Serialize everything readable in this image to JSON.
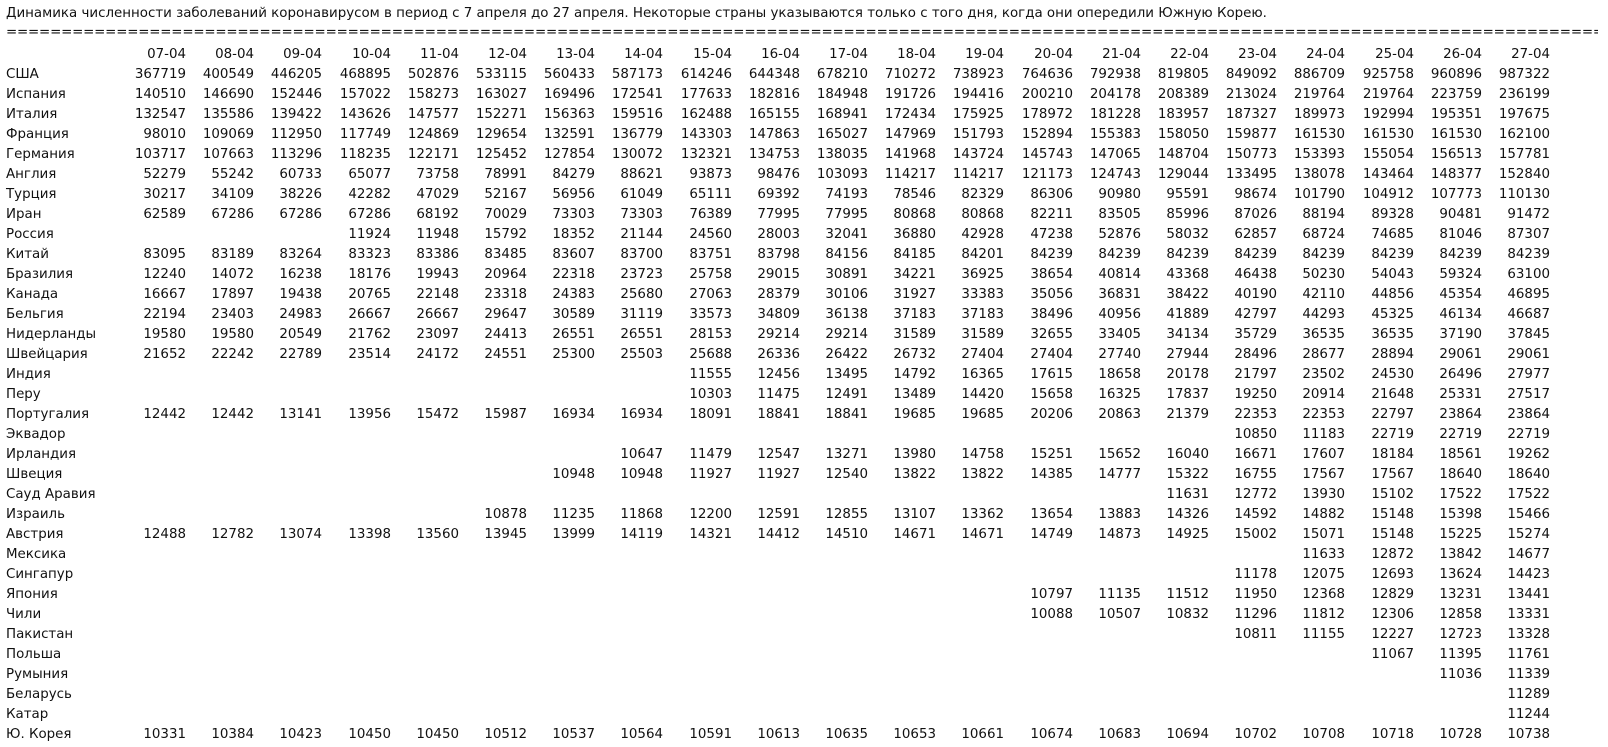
{
  "title": "Динамика численности заболеваний коронавирусом в период с 7 апреля до 27 апреля. Некоторые страны указываются только с того дня, когда они опередили Южную Корею.",
  "separator": "=====================================================================================================================================================================================================================================================",
  "dates": [
    "07-04",
    "08-04",
    "09-04",
    "10-04",
    "11-04",
    "12-04",
    "13-04",
    "14-04",
    "15-04",
    "16-04",
    "17-04",
    "18-04",
    "19-04",
    "20-04",
    "21-04",
    "22-04",
    "23-04",
    "24-04",
    "25-04",
    "26-04",
    "27-04"
  ],
  "rows": [
    {
      "country": "США",
      "values": [
        "367719",
        "400549",
        "446205",
        "468895",
        "502876",
        "533115",
        "560433",
        "587173",
        "614246",
        "644348",
        "678210",
        "710272",
        "738923",
        "764636",
        "792938",
        "819805",
        "849092",
        "886709",
        "925758",
        "960896",
        "987322"
      ]
    },
    {
      "country": "Испания",
      "values": [
        "140510",
        "146690",
        "152446",
        "157022",
        "158273",
        "163027",
        "169496",
        "172541",
        "177633",
        "182816",
        "184948",
        "191726",
        "194416",
        "200210",
        "204178",
        "208389",
        "213024",
        "219764",
        "219764",
        "223759",
        "236199"
      ]
    },
    {
      "country": "Италия",
      "values": [
        "132547",
        "135586",
        "139422",
        "143626",
        "147577",
        "152271",
        "156363",
        "159516",
        "162488",
        "165155",
        "168941",
        "172434",
        "175925",
        "178972",
        "181228",
        "183957",
        "187327",
        "189973",
        "192994",
        "195351",
        "197675"
      ]
    },
    {
      "country": "Франция",
      "values": [
        "98010",
        "109069",
        "112950",
        "117749",
        "124869",
        "129654",
        "132591",
        "136779",
        "143303",
        "147863",
        "165027",
        "147969",
        "151793",
        "152894",
        "155383",
        "158050",
        "159877",
        "161530",
        "161530",
        "161530",
        "162100"
      ]
    },
    {
      "country": "Германия",
      "values": [
        "103717",
        "107663",
        "113296",
        "118235",
        "122171",
        "125452",
        "127854",
        "130072",
        "132321",
        "134753",
        "138035",
        "141968",
        "143724",
        "145743",
        "147065",
        "148704",
        "150773",
        "153393",
        "155054",
        "156513",
        "157781"
      ]
    },
    {
      "country": "Англия",
      "values": [
        "52279",
        "55242",
        "60733",
        "65077",
        "73758",
        "78991",
        "84279",
        "88621",
        "93873",
        "98476",
        "103093",
        "114217",
        "114217",
        "121173",
        "124743",
        "129044",
        "133495",
        "138078",
        "143464",
        "148377",
        "152840"
      ]
    },
    {
      "country": "Турция",
      "values": [
        "30217",
        "34109",
        "38226",
        "42282",
        "47029",
        "52167",
        "56956",
        "61049",
        "65111",
        "69392",
        "74193",
        "78546",
        "82329",
        "86306",
        "90980",
        "95591",
        "98674",
        "101790",
        "104912",
        "107773",
        "110130"
      ]
    },
    {
      "country": "Иран",
      "values": [
        "62589",
        "67286",
        "67286",
        "67286",
        "68192",
        "70029",
        "73303",
        "73303",
        "76389",
        "77995",
        "77995",
        "80868",
        "80868",
        "82211",
        "83505",
        "85996",
        "87026",
        "88194",
        "89328",
        "90481",
        "91472"
      ]
    },
    {
      "country": "Россия",
      "values": [
        "",
        "",
        "",
        "11924",
        "11948",
        "15792",
        "18352",
        "21144",
        "24560",
        "28003",
        "32041",
        "36880",
        "42928",
        "47238",
        "52876",
        "58032",
        "62857",
        "68724",
        "74685",
        "81046",
        "87307"
      ]
    },
    {
      "country": "Китай",
      "values": [
        "83095",
        "83189",
        "83264",
        "83323",
        "83386",
        "83485",
        "83607",
        "83700",
        "83751",
        "83798",
        "84156",
        "84185",
        "84201",
        "84239",
        "84239",
        "84239",
        "84239",
        "84239",
        "84239",
        "84239",
        "84239"
      ]
    },
    {
      "country": "Бразилия",
      "values": [
        "12240",
        "14072",
        "16238",
        "18176",
        "19943",
        "20964",
        "22318",
        "23723",
        "25758",
        "29015",
        "30891",
        "34221",
        "36925",
        "38654",
        "40814",
        "43368",
        "46438",
        "50230",
        "54043",
        "59324",
        "63100"
      ]
    },
    {
      "country": "Канада",
      "values": [
        "16667",
        "17897",
        "19438",
        "20765",
        "22148",
        "23318",
        "24383",
        "25680",
        "27063",
        "28379",
        "30106",
        "31927",
        "33383",
        "35056",
        "36831",
        "38422",
        "40190",
        "42110",
        "44856",
        "45354",
        "46895"
      ]
    },
    {
      "country": "Бельгия",
      "values": [
        "22194",
        "23403",
        "24983",
        "26667",
        "26667",
        "29647",
        "30589",
        "31119",
        "33573",
        "34809",
        "36138",
        "37183",
        "37183",
        "38496",
        "40956",
        "41889",
        "42797",
        "44293",
        "45325",
        "46134",
        "46687"
      ]
    },
    {
      "country": "Нидерланды",
      "values": [
        "19580",
        "19580",
        "20549",
        "21762",
        "23097",
        "24413",
        "26551",
        "26551",
        "28153",
        "29214",
        "29214",
        "31589",
        "31589",
        "32655",
        "33405",
        "34134",
        "35729",
        "36535",
        "36535",
        "37190",
        "37845"
      ]
    },
    {
      "country": "Швейцария",
      "values": [
        "21652",
        "22242",
        "22789",
        "23514",
        "24172",
        "24551",
        "25300",
        "25503",
        "25688",
        "26336",
        "26422",
        "26732",
        "27404",
        "27404",
        "27740",
        "27944",
        "28496",
        "28677",
        "28894",
        "29061",
        "29061"
      ]
    },
    {
      "country": "Индия",
      "values": [
        "",
        "",
        "",
        "",
        "",
        "",
        "",
        "",
        "11555",
        "12456",
        "13495",
        "14792",
        "16365",
        "17615",
        "18658",
        "20178",
        "21797",
        "23502",
        "24530",
        "26496",
        "27977"
      ]
    },
    {
      "country": "Перу",
      "values": [
        "",
        "",
        "",
        "",
        "",
        "",
        "",
        "",
        "10303",
        "11475",
        "12491",
        "13489",
        "14420",
        "15658",
        "16325",
        "17837",
        "19250",
        "20914",
        "21648",
        "25331",
        "27517"
      ]
    },
    {
      "country": "Португалия",
      "values": [
        "12442",
        "12442",
        "13141",
        "13956",
        "15472",
        "15987",
        "16934",
        "16934",
        "18091",
        "18841",
        "18841",
        "19685",
        "19685",
        "20206",
        "20863",
        "21379",
        "22353",
        "22353",
        "22797",
        "23864",
        "23864"
      ]
    },
    {
      "country": "Эквадор",
      "values": [
        "",
        "",
        "",
        "",
        "",
        "",
        "",
        "",
        "",
        "",
        "",
        "",
        "",
        "",
        "",
        "",
        "10850",
        "11183",
        "22719",
        "22719",
        "22719"
      ]
    },
    {
      "country": "Ирландия",
      "values": [
        "",
        "",
        "",
        "",
        "",
        "",
        "",
        "10647",
        "11479",
        "12547",
        "13271",
        "13980",
        "14758",
        "15251",
        "15652",
        "16040",
        "16671",
        "17607",
        "18184",
        "18561",
        "19262"
      ]
    },
    {
      "country": "Швеция",
      "values": [
        "",
        "",
        "",
        "",
        "",
        "",
        "10948",
        "10948",
        "11927",
        "11927",
        "12540",
        "13822",
        "13822",
        "14385",
        "14777",
        "15322",
        "16755",
        "17567",
        "17567",
        "18640",
        "18640"
      ]
    },
    {
      "country": "Сауд Аравия",
      "values": [
        "",
        "",
        "",
        "",
        "",
        "",
        "",
        "",
        "",
        "",
        "",
        "",
        "",
        "",
        "",
        "11631",
        "12772",
        "13930",
        "15102",
        "17522",
        "17522"
      ]
    },
    {
      "country": "Израиль",
      "values": [
        "",
        "",
        "",
        "",
        "",
        "10878",
        "11235",
        "11868",
        "12200",
        "12591",
        "12855",
        "13107",
        "13362",
        "13654",
        "13883",
        "14326",
        "14592",
        "14882",
        "15148",
        "15398",
        "15466"
      ]
    },
    {
      "country": "Австрия",
      "values": [
        "12488",
        "12782",
        "13074",
        "13398",
        "13560",
        "13945",
        "13999",
        "14119",
        "14321",
        "14412",
        "14510",
        "14671",
        "14671",
        "14749",
        "14873",
        "14925",
        "15002",
        "15071",
        "15148",
        "15225",
        "15274"
      ]
    },
    {
      "country": "Мексика",
      "values": [
        "",
        "",
        "",
        "",
        "",
        "",
        "",
        "",
        "",
        "",
        "",
        "",
        "",
        "",
        "",
        "",
        "",
        "11633",
        "12872",
        "13842",
        "14677"
      ]
    },
    {
      "country": "Сингапур",
      "values": [
        "",
        "",
        "",
        "",
        "",
        "",
        "",
        "",
        "",
        "",
        "",
        "",
        "",
        "",
        "",
        "",
        "11178",
        "12075",
        "12693",
        "13624",
        "14423"
      ]
    },
    {
      "country": "Япония",
      "values": [
        "",
        "",
        "",
        "",
        "",
        "",
        "",
        "",
        "",
        "",
        "",
        "",
        "",
        "10797",
        "11135",
        "11512",
        "11950",
        "12368",
        "12829",
        "13231",
        "13441"
      ]
    },
    {
      "country": "Чили",
      "values": [
        "",
        "",
        "",
        "",
        "",
        "",
        "",
        "",
        "",
        "",
        "",
        "",
        "",
        "10088",
        "10507",
        "10832",
        "11296",
        "11812",
        "12306",
        "12858",
        "13331"
      ]
    },
    {
      "country": "Пакистан",
      "values": [
        "",
        "",
        "",
        "",
        "",
        "",
        "",
        "",
        "",
        "",
        "",
        "",
        "",
        "",
        "",
        "",
        "10811",
        "11155",
        "12227",
        "12723",
        "13328"
      ]
    },
    {
      "country": "Польша",
      "values": [
        "",
        "",
        "",
        "",
        "",
        "",
        "",
        "",
        "",
        "",
        "",
        "",
        "",
        "",
        "",
        "",
        "",
        "",
        "11067",
        "11395",
        "11761"
      ]
    },
    {
      "country": "Румыния",
      "values": [
        "",
        "",
        "",
        "",
        "",
        "",
        "",
        "",
        "",
        "",
        "",
        "",
        "",
        "",
        "",
        "",
        "",
        "",
        "",
        "11036",
        "11339"
      ]
    },
    {
      "country": "Беларусь",
      "values": [
        "",
        "",
        "",
        "",
        "",
        "",
        "",
        "",
        "",
        "",
        "",
        "",
        "",
        "",
        "",
        "",
        "",
        "",
        "",
        "",
        "11289"
      ]
    },
    {
      "country": "Катар",
      "values": [
        "",
        "",
        "",
        "",
        "",
        "",
        "",
        "",
        "",
        "",
        "",
        "",
        "",
        "",
        "",
        "",
        "",
        "",
        "",
        "",
        "11244"
      ]
    },
    {
      "country": "Ю. Корея",
      "values": [
        "10331",
        "10384",
        "10423",
        "10450",
        "10450",
        "10512",
        "10537",
        "10564",
        "10591",
        "10613",
        "10635",
        "10653",
        "10661",
        "10674",
        "10683",
        "10694",
        "10702",
        "10708",
        "10718",
        "10728",
        "10738"
      ]
    }
  ]
}
